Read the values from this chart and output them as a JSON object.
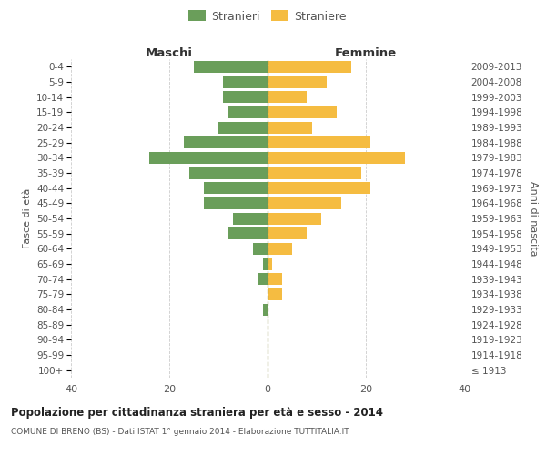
{
  "age_groups": [
    "100+",
    "95-99",
    "90-94",
    "85-89",
    "80-84",
    "75-79",
    "70-74",
    "65-69",
    "60-64",
    "55-59",
    "50-54",
    "45-49",
    "40-44",
    "35-39",
    "30-34",
    "25-29",
    "20-24",
    "15-19",
    "10-14",
    "5-9",
    "0-4"
  ],
  "birth_years": [
    "≤ 1913",
    "1914-1918",
    "1919-1923",
    "1924-1928",
    "1929-1933",
    "1934-1938",
    "1939-1943",
    "1944-1948",
    "1949-1953",
    "1954-1958",
    "1959-1963",
    "1964-1968",
    "1969-1973",
    "1974-1978",
    "1979-1983",
    "1984-1988",
    "1989-1993",
    "1994-1998",
    "1999-2003",
    "2004-2008",
    "2009-2013"
  ],
  "maschi": [
    0,
    0,
    0,
    0,
    1,
    0,
    2,
    1,
    3,
    8,
    7,
    13,
    13,
    16,
    24,
    17,
    10,
    8,
    9,
    9,
    15
  ],
  "femmine": [
    0,
    0,
    0,
    0,
    0,
    3,
    3,
    1,
    5,
    8,
    11,
    15,
    21,
    19,
    28,
    21,
    9,
    14,
    8,
    12,
    17
  ],
  "maschi_color": "#6a9e5a",
  "femmine_color": "#f5bc41",
  "title_main": "Popolazione per cittadinanza straniera per età e sesso - 2014",
  "title_sub": "COMUNE DI BRENO (BS) - Dati ISTAT 1° gennaio 2014 - Elaborazione TUTTITALIA.IT",
  "xlabel_left": "Maschi",
  "xlabel_right": "Femmine",
  "ylabel_left": "Fasce di età",
  "ylabel_right": "Anni di nascita",
  "legend_stranieri": "Stranieri",
  "legend_straniere": "Straniere",
  "xlim": 40,
  "background_color": "#ffffff",
  "grid_color": "#cccccc",
  "axis_color": "#aaaaaa",
  "text_color": "#555555"
}
